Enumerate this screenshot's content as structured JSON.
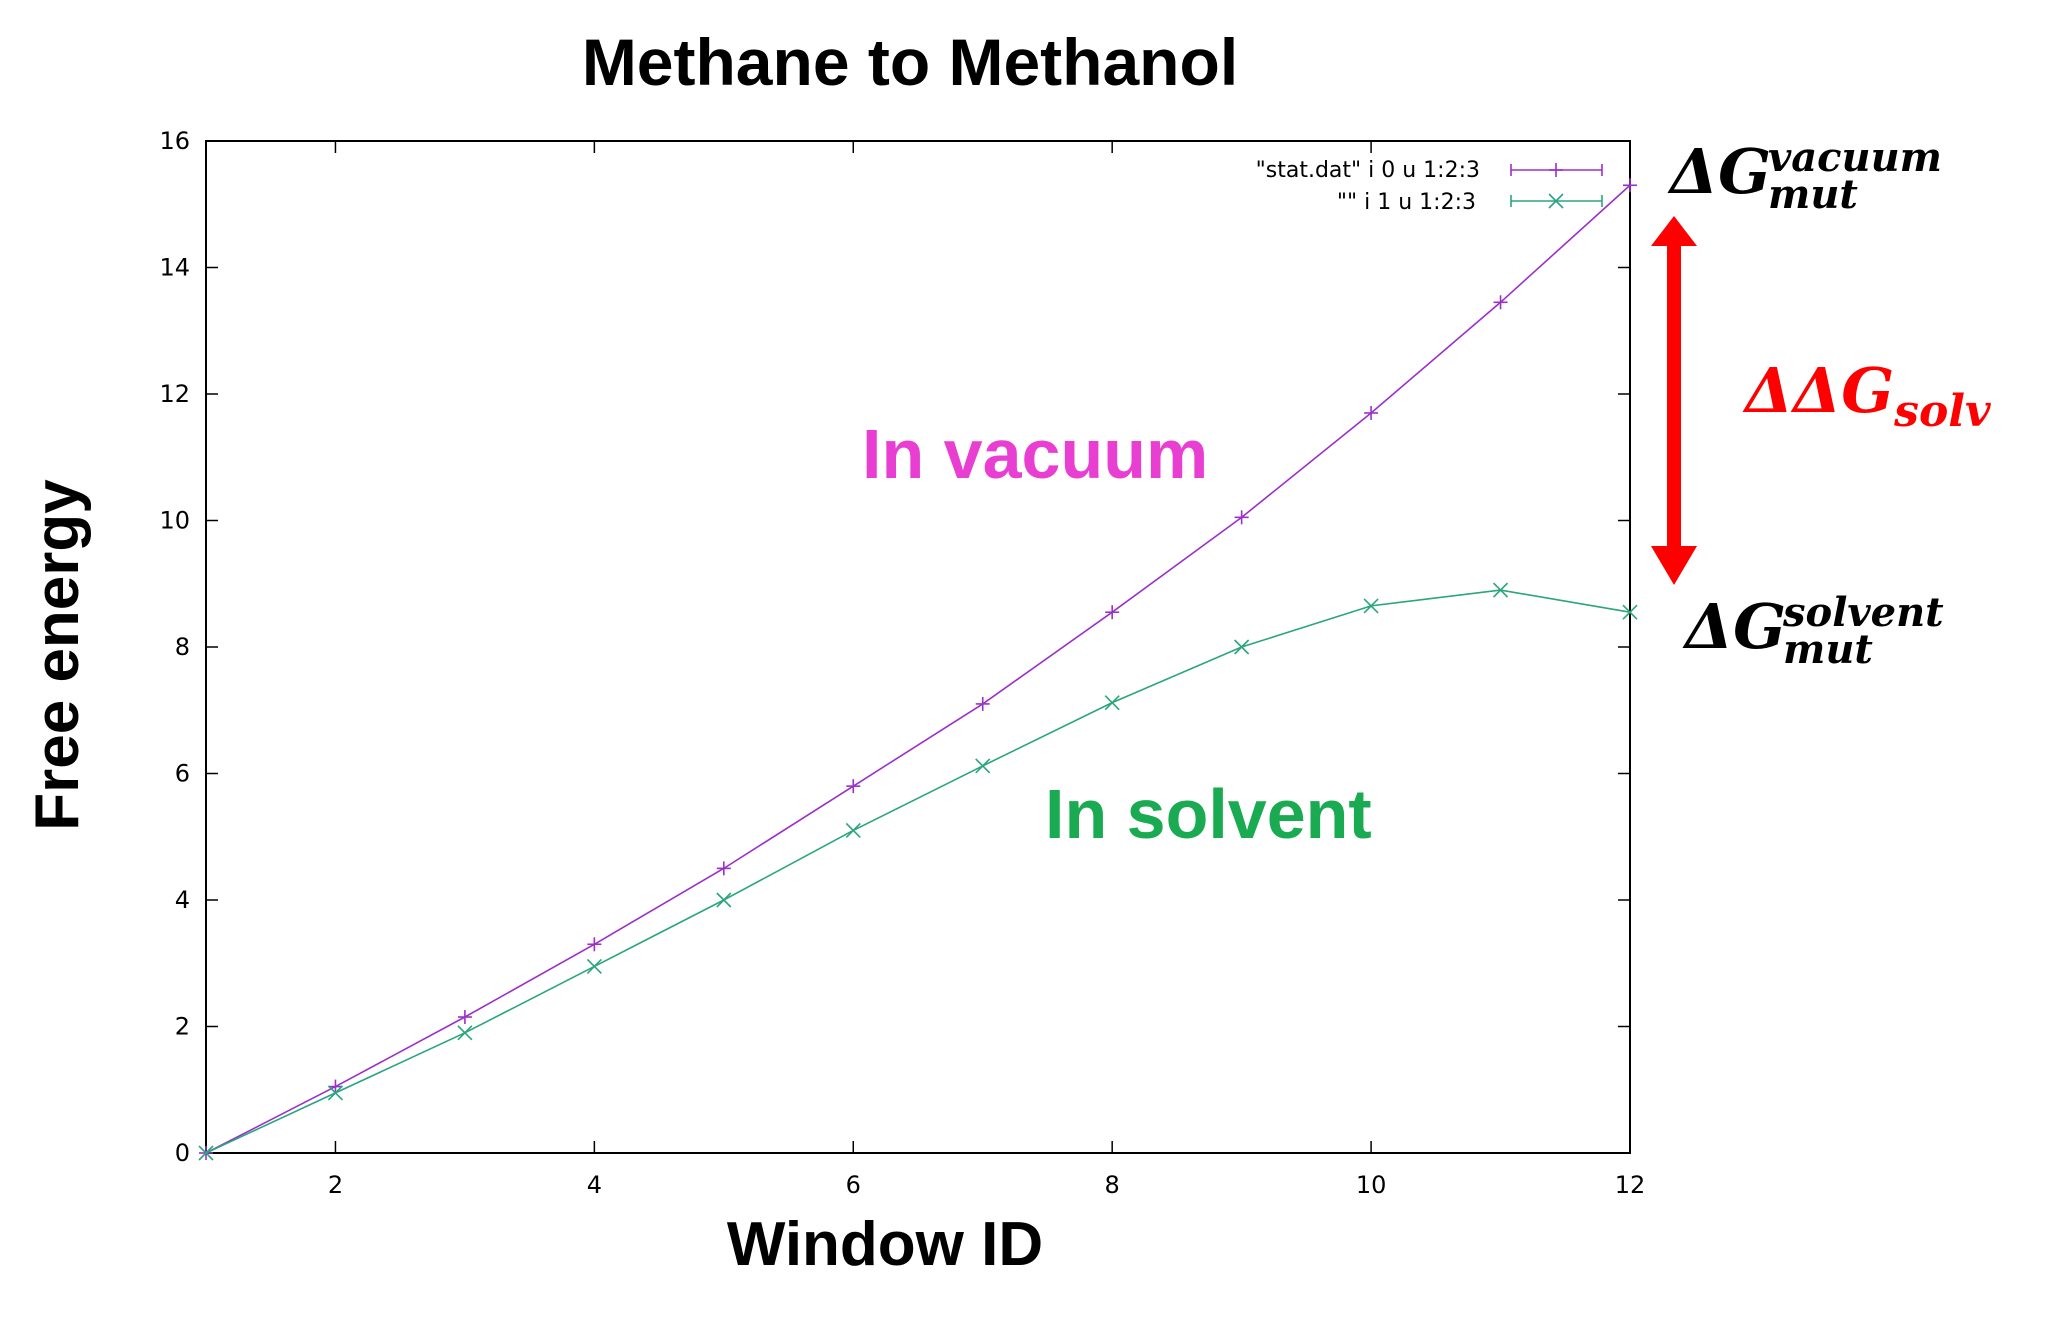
{
  "chart_data": {
    "type": "line",
    "title": "Methane to Methanol",
    "xlabel": "Window ID",
    "ylabel": "Free energy",
    "xlim": [
      1,
      12
    ],
    "ylim": [
      0,
      16
    ],
    "xticks": [
      2,
      4,
      6,
      8,
      10,
      12
    ],
    "yticks": [
      0,
      2,
      4,
      6,
      8,
      10,
      12,
      14,
      16
    ],
    "grid": false,
    "legend_position": "top-right",
    "x": [
      1,
      2,
      3,
      4,
      5,
      6,
      7,
      8,
      9,
      10,
      11,
      12
    ],
    "series": [
      {
        "name": "\"stat.dat\" i 0 u 1:2:3",
        "color": "#9b30c8",
        "marker": "plus",
        "values": [
          0,
          1.05,
          2.15,
          3.3,
          4.5,
          5.8,
          7.1,
          8.55,
          10.05,
          11.7,
          13.45,
          15.3
        ]
      },
      {
        "name": "\"\" i 1 u 1:2:3",
        "color": "#2aa57e",
        "marker": "cross",
        "values": [
          0,
          0.95,
          1.9,
          2.95,
          4.0,
          5.1,
          6.12,
          7.12,
          8.0,
          8.65,
          8.9,
          8.55
        ]
      }
    ],
    "annotations": {
      "vacuum_label": "In vacuum",
      "vacuum_color": "#e83fd2",
      "solvent_label": "In solvent",
      "solvent_color": "#1aab52",
      "arrow_color": "#ff0000",
      "ddg_delta": "ΔΔ",
      "ddg_base": "G",
      "ddg_sub": "solv",
      "dg_vac_delta": "Δ",
      "dg_vac_base": "G",
      "dg_vac_sup": "vacuum",
      "dg_vac_sub": "mut",
      "dg_sol_delta": "Δ",
      "dg_sol_base": "G",
      "dg_sol_sup": "solvent",
      "dg_sol_sub": "mut"
    }
  }
}
